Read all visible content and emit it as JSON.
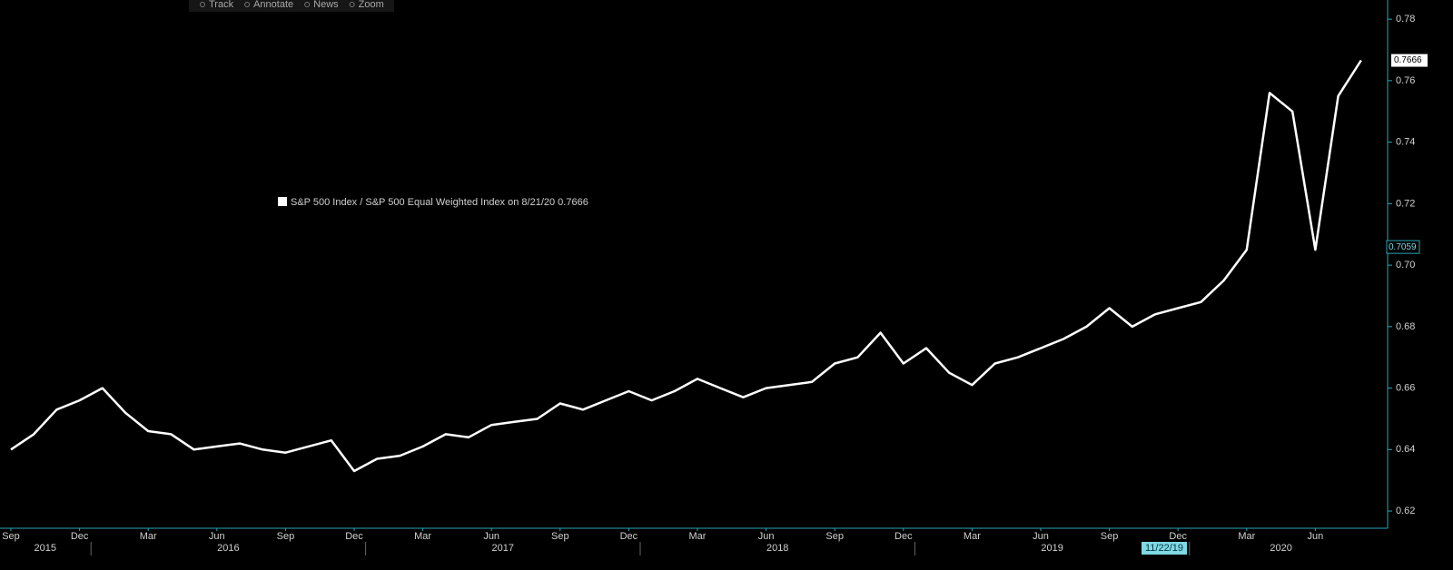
{
  "chart_data": {
    "type": "line",
    "toolbar": [
      "Track",
      "Annotate",
      "News",
      "Zoom"
    ],
    "categories": [
      "2015-09",
      "2015-10",
      "2015-11",
      "2015-12",
      "2016-01",
      "2016-02",
      "2016-03",
      "2016-04",
      "2016-05",
      "2016-06",
      "2016-07",
      "2016-08",
      "2016-09",
      "2016-10",
      "2016-11",
      "2016-12",
      "2017-01",
      "2017-02",
      "2017-03",
      "2017-04",
      "2017-05",
      "2017-06",
      "2017-07",
      "2017-08",
      "2017-09",
      "2017-10",
      "2017-11",
      "2017-12",
      "2018-01",
      "2018-02",
      "2018-03",
      "2018-04",
      "2018-05",
      "2018-06",
      "2018-07",
      "2018-08",
      "2018-09",
      "2018-10",
      "2018-11",
      "2018-12",
      "2019-01",
      "2019-02",
      "2019-03",
      "2019-04",
      "2019-05",
      "2019-06",
      "2019-07",
      "2019-08",
      "2019-09",
      "2019-10",
      "2019-11",
      "2019-12",
      "2020-01",
      "2020-02",
      "2020-03",
      "2020-04",
      "2020-05",
      "2020-06",
      "2020-07",
      "2020-08"
    ],
    "series": [
      {
        "name": "S&P 500 Index / S&P 500 Equal Weighted Index on 8/21/20 0.7666",
        "color": "#ffffff",
        "values": [
          0.64,
          0.645,
          0.653,
          0.656,
          0.66,
          0.652,
          0.646,
          0.645,
          0.64,
          0.641,
          0.642,
          0.64,
          0.639,
          0.641,
          0.643,
          0.633,
          0.637,
          0.638,
          0.641,
          0.645,
          0.644,
          0.648,
          0.649,
          0.65,
          0.655,
          0.653,
          0.656,
          0.659,
          0.656,
          0.659,
          0.663,
          0.66,
          0.657,
          0.66,
          0.661,
          0.662,
          0.668,
          0.67,
          0.678,
          0.668,
          0.673,
          0.665,
          0.661,
          0.668,
          0.67,
          0.673,
          0.676,
          0.68,
          0.686,
          0.68,
          0.684,
          0.686,
          0.688,
          0.695,
          0.705,
          0.756,
          0.75,
          0.705,
          0.755,
          0.7666
        ]
      }
    ],
    "xticks": [
      {
        "value": "2015-09",
        "label": "Sep"
      },
      {
        "value": "2015-12",
        "label": "Dec"
      },
      {
        "value": "2016-03",
        "label": "Mar"
      },
      {
        "value": "2016-06",
        "label": "Jun"
      },
      {
        "value": "2016-09",
        "label": "Sep"
      },
      {
        "value": "2016-12",
        "label": "Dec"
      },
      {
        "value": "2017-03",
        "label": "Mar"
      },
      {
        "value": "2017-06",
        "label": "Jun"
      },
      {
        "value": "2017-09",
        "label": "Sep"
      },
      {
        "value": "2017-12",
        "label": "Dec"
      },
      {
        "value": "2018-03",
        "label": "Mar"
      },
      {
        "value": "2018-06",
        "label": "Jun"
      },
      {
        "value": "2018-09",
        "label": "Sep"
      },
      {
        "value": "2018-12",
        "label": "Dec"
      },
      {
        "value": "2019-03",
        "label": "Mar"
      },
      {
        "value": "2019-06",
        "label": "Jun"
      },
      {
        "value": "2019-09",
        "label": "Sep"
      },
      {
        "value": "2019-12",
        "label": "Dec"
      },
      {
        "value": "2020-03",
        "label": "Mar"
      },
      {
        "value": "2020-06",
        "label": "Jun"
      }
    ],
    "years": [
      "2015",
      "2016",
      "2017",
      "2018",
      "2019",
      "2020"
    ],
    "ylim": [
      0.615,
      0.783
    ],
    "yticks": [
      0.62,
      0.64,
      0.66,
      0.68,
      {
        "value": 0.7,
        "label": "0.70"
      },
      0.72,
      0.74,
      0.76,
      0.78
    ],
    "last_value": 0.7666,
    "crosshair": {
      "x_label": "11/22/19",
      "y": 0.7059
    }
  }
}
